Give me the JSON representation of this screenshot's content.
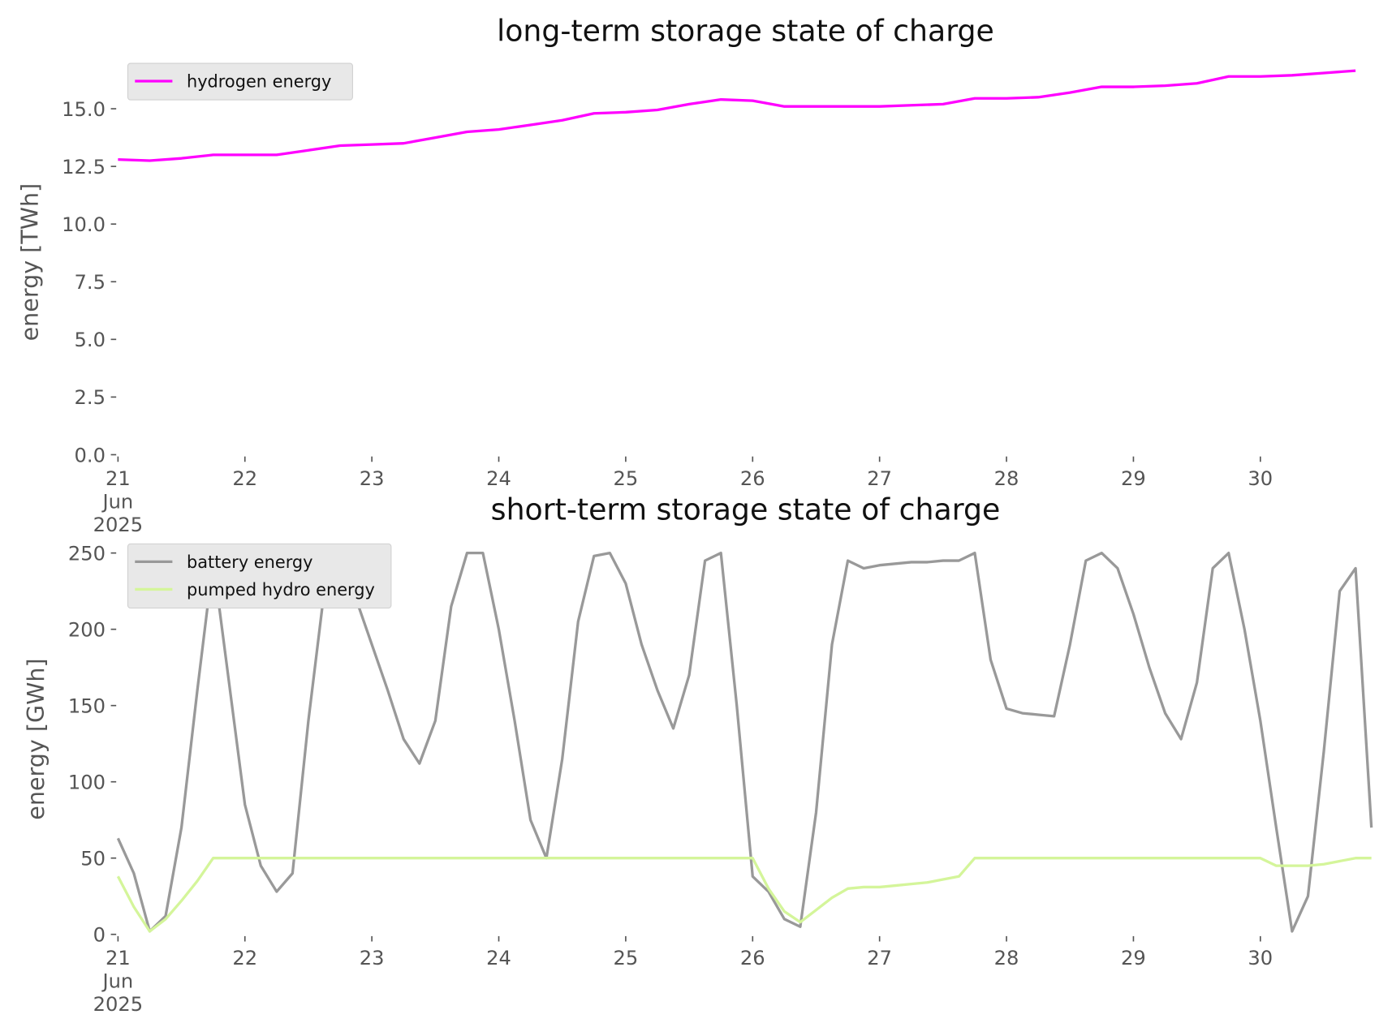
{
  "chart_data": [
    {
      "type": "line",
      "title": "long-term storage state of charge",
      "ylabel": "energy [TWh]",
      "x": [
        21,
        21.25,
        21.5,
        21.75,
        22,
        22.25,
        22.5,
        22.75,
        23,
        23.25,
        23.5,
        23.75,
        24,
        24.25,
        24.5,
        24.75,
        25,
        25.25,
        25.5,
        25.75,
        26,
        26.25,
        26.5,
        26.75,
        27,
        27.25,
        27.5,
        27.75,
        28,
        28.25,
        28.5,
        28.75,
        29,
        29.25,
        29.5,
        29.75,
        30,
        30.25,
        30.5,
        30.75
      ],
      "series": [
        {
          "name": "hydrogen energy",
          "color": "#ff00ff",
          "values": [
            12.8,
            12.75,
            12.85,
            13.0,
            13.0,
            13.0,
            13.2,
            13.4,
            13.45,
            13.5,
            13.75,
            14.0,
            14.1,
            14.3,
            14.5,
            14.8,
            14.85,
            14.95,
            15.2,
            15.4,
            15.35,
            15.1,
            15.1,
            15.1,
            15.1,
            15.15,
            15.2,
            15.45,
            15.45,
            15.5,
            15.7,
            15.95,
            15.95,
            16.0,
            16.1,
            16.4,
            16.4,
            16.45,
            16.55,
            16.65
          ]
        }
      ],
      "xlim": [
        21,
        31
      ],
      "xticks": [
        {
          "value": 21,
          "label": "21\nJun\n2025"
        },
        22,
        23,
        24,
        25,
        26,
        27,
        28,
        29,
        30
      ],
      "ylim": [
        0,
        16.7
      ],
      "yticks": [
        {
          "value": 0,
          "label": "0.0"
        },
        2.5,
        {
          "value": 5,
          "label": "5.0"
        },
        7.5,
        {
          "value": 10,
          "label": "10.0"
        },
        12.5,
        {
          "value": 15,
          "label": "15.0"
        }
      ],
      "grid": false,
      "legend": "upper left"
    },
    {
      "type": "line",
      "title": "short-term storage state of charge",
      "ylabel": "energy [GWh]",
      "x": [
        21,
        21.125,
        21.25,
        21.375,
        21.5,
        21.625,
        21.75,
        21.875,
        22,
        22.125,
        22.25,
        22.375,
        22.5,
        22.625,
        22.75,
        22.875,
        23,
        23.125,
        23.25,
        23.375,
        23.5,
        23.625,
        23.75,
        23.875,
        24,
        24.125,
        24.25,
        24.375,
        24.5,
        24.625,
        24.75,
        24.875,
        25,
        25.125,
        25.25,
        25.375,
        25.5,
        25.625,
        25.75,
        25.875,
        26,
        26.125,
        26.25,
        26.375,
        26.5,
        26.625,
        26.75,
        26.875,
        27,
        27.125,
        27.25,
        27.375,
        27.5,
        27.625,
        27.75,
        27.875,
        28,
        28.125,
        28.25,
        28.375,
        28.5,
        28.625,
        28.75,
        28.875,
        29,
        29.125,
        29.25,
        29.375,
        29.5,
        29.625,
        29.75,
        29.875,
        30,
        30.125,
        30.25,
        30.375,
        30.5,
        30.625,
        30.75,
        30.875
      ],
      "series": [
        {
          "name": "battery energy",
          "color": "#999999",
          "values": [
            63,
            40,
            2,
            12,
            70,
            160,
            245,
            165,
            85,
            45,
            28,
            40,
            140,
            225,
            248,
            220,
            190,
            160,
            128,
            112,
            140,
            215,
            250,
            250,
            200,
            140,
            75,
            50,
            115,
            205,
            248,
            250,
            230,
            190,
            160,
            135,
            170,
            245,
            250,
            150,
            38,
            28,
            10,
            5,
            80,
            190,
            245,
            240,
            242,
            243,
            244,
            244,
            245,
            245,
            250,
            180,
            148,
            145,
            144,
            143,
            190,
            245,
            250,
            240,
            210,
            175,
            145,
            128,
            165,
            240,
            250,
            200,
            140,
            70,
            2,
            25,
            120,
            225,
            240,
            70
          ]
        },
        {
          "name": "pumped hydro energy",
          "color": "#d4f59a",
          "values": [
            38,
            18,
            2,
            10,
            22,
            35,
            50,
            50,
            50,
            50,
            50,
            50,
            50,
            50,
            50,
            50,
            50,
            50,
            50,
            50,
            50,
            50,
            50,
            50,
            50,
            50,
            50,
            50,
            50,
            50,
            50,
            50,
            50,
            50,
            50,
            50,
            50,
            50,
            50,
            50,
            50,
            30,
            15,
            8,
            16,
            24,
            30,
            31,
            31,
            32,
            33,
            34,
            36,
            38,
            50,
            50,
            50,
            50,
            50,
            50,
            50,
            50,
            50,
            50,
            50,
            50,
            50,
            50,
            50,
            50,
            50,
            50,
            50,
            45,
            45,
            45,
            46,
            48,
            50,
            50
          ]
        }
      ],
      "xlim": [
        21,
        31
      ],
      "xticks": [
        {
          "value": 21,
          "label": "21\nJun\n2025"
        },
        22,
        23,
        24,
        25,
        26,
        27,
        28,
        29,
        30
      ],
      "ylim": [
        0,
        256
      ],
      "yticks": [
        0,
        50,
        100,
        150,
        200,
        250
      ],
      "grid": false,
      "legend": "upper left"
    }
  ]
}
